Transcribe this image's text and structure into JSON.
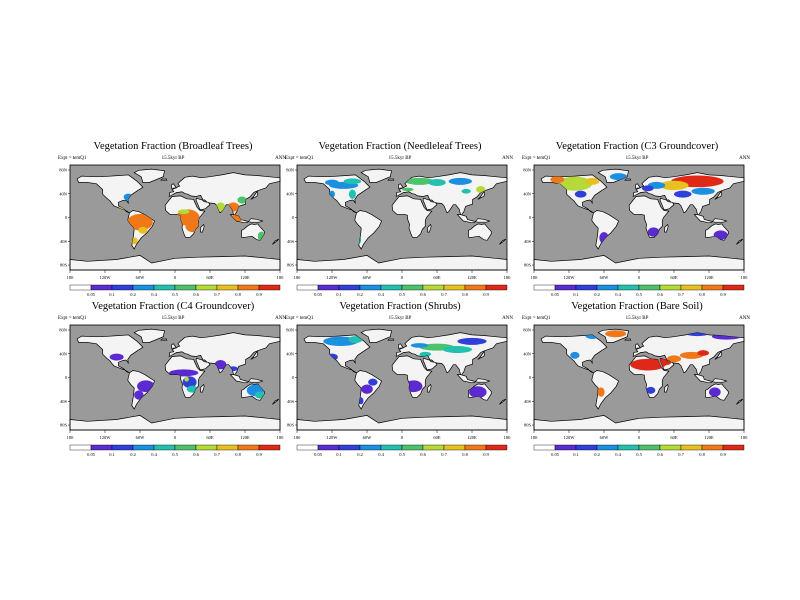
{
  "experiment_label": "Expt = temQ1",
  "time_label": "15.5kyr BP",
  "season_label": "ANN",
  "lon_ticks": [
    "180",
    "120W",
    "60W",
    "0",
    "60E",
    "120E",
    "180"
  ],
  "lat_ticks": [
    "80N",
    "40N",
    "0",
    "40S",
    "80S"
  ],
  "colorbar_labels": [
    "0.05",
    "0.1",
    "0.2",
    "0.4",
    "0.5",
    "0.6",
    "0.7",
    "0.8",
    "0.9"
  ],
  "colorbar_colors": [
    "#ffffff",
    "#5b2ad0",
    "#2f3fd8",
    "#1d8fe0",
    "#22c0b0",
    "#4cc36a",
    "#b6d93a",
    "#e8c020",
    "#f07818",
    "#e02818"
  ],
  "ocean_color": "#9a9a9a",
  "land_color": "#f4f4f4",
  "panels": [
    {
      "id": "broadleaf",
      "title": "Vegetation Fraction (Broadleaf Trees)"
    },
    {
      "id": "needleleaf",
      "title": "Vegetation Fraction (Needleleaf Trees)"
    },
    {
      "id": "c3",
      "title": "Vegetation Fraction (C3 Groundcover)"
    },
    {
      "id": "c4",
      "title": "Vegetation Fraction (C4 Groundcover)"
    },
    {
      "id": "shrubs",
      "title": "Vegetation Fraction (Shrubs)"
    },
    {
      "id": "baresoil",
      "title": "Vegetation Fraction (Bare Soil)"
    }
  ]
}
